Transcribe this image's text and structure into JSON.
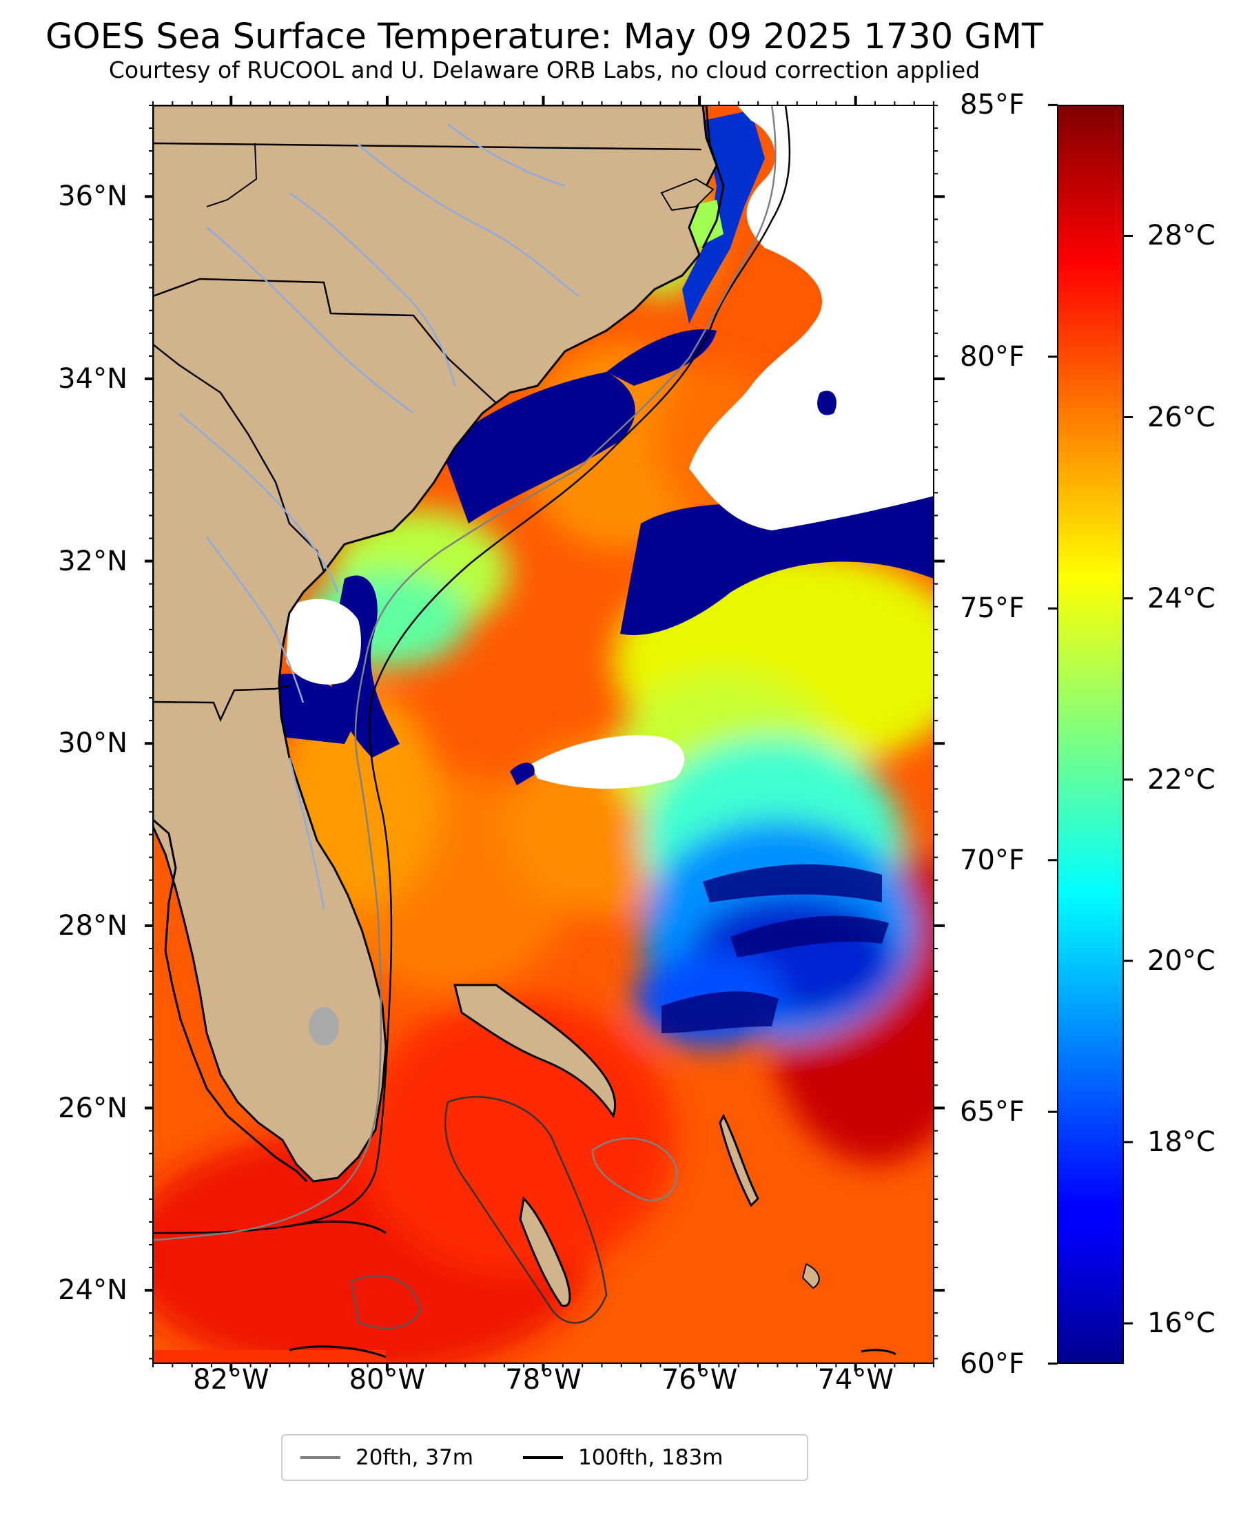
{
  "title": "GOES Sea Surface Temperature: May 09 2025 1730 GMT",
  "subtitle": "Courtesy of RUCOOL and U. Delaware ORB Labs, no cloud correction applied",
  "map": {
    "lon_range": [
      -83.0,
      -73.0
    ],
    "lat_range": [
      23.2,
      37.0
    ],
    "lat_labels": [
      {
        "value": 36,
        "text": "36°N"
      },
      {
        "value": 34,
        "text": "34°N"
      },
      {
        "value": 32,
        "text": "32°N"
      },
      {
        "value": 30,
        "text": "30°N"
      },
      {
        "value": 28,
        "text": "28°N"
      },
      {
        "value": 26,
        "text": "26°N"
      },
      {
        "value": 24,
        "text": "24°N"
      }
    ],
    "lon_labels": [
      {
        "value": -82,
        "text": "82°W"
      },
      {
        "value": -80,
        "text": "80°W"
      },
      {
        "value": -78,
        "text": "78°W"
      },
      {
        "value": -76,
        "text": "76°W"
      },
      {
        "value": -74,
        "text": "74°W"
      }
    ],
    "colors": {
      "land": "#d2b48c",
      "cloud_mask": "#ffffff",
      "warm_water": "#ff4a00",
      "cold_water": "#00008f",
      "isobath_20": "#808080",
      "isobath_100": "#000000",
      "rivers": "#8faadc"
    }
  },
  "colorbar": {
    "colormap": "jet",
    "celsius_range": [
      15.56,
      29.44
    ],
    "fahrenheit_labels": [
      "85°F",
      "80°F",
      "75°F",
      "70°F",
      "65°F",
      "60°F"
    ],
    "fahrenheit_values": [
      85,
      80,
      75,
      70,
      65,
      60
    ],
    "celsius_labels": [
      "28°C",
      "26°C",
      "24°C",
      "22°C",
      "20°C",
      "18°C",
      "16°C"
    ],
    "celsius_values": [
      28,
      26,
      24,
      22,
      20,
      18,
      16
    ]
  },
  "legend": {
    "items": [
      {
        "label": "20fth, 37m",
        "color": "#808080"
      },
      {
        "label": "100fth, 183m",
        "color": "#000000"
      }
    ]
  }
}
